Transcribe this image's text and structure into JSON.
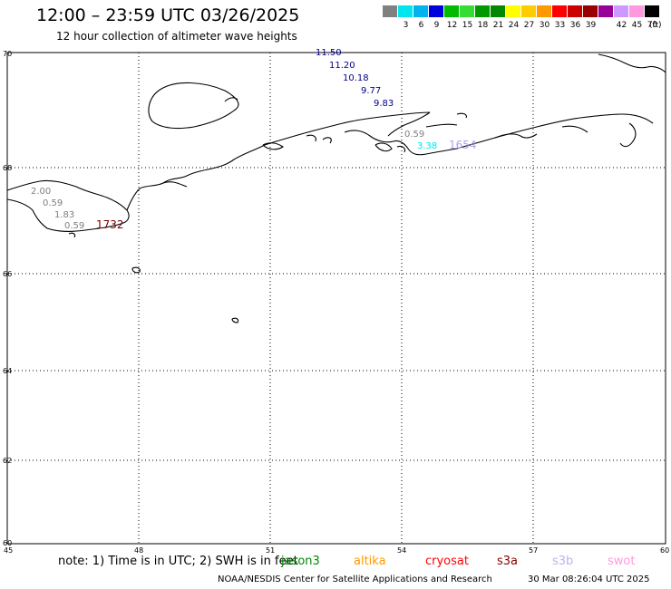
{
  "header": {
    "title": "12:00 – 23:59 UTC 03/26/2025",
    "subtitle": "12 hour collection of altimeter wave heights"
  },
  "scale": {
    "unit": "(ft)",
    "colors": [
      "#808080",
      "#00e5ee",
      "#00b2ee",
      "#0000dd",
      "#00bb00",
      "#33dd33",
      "#009900",
      "#008800",
      "#ffff00",
      "#ffcc00",
      "#ff9900",
      "#ff0000",
      "#cc0000",
      "#990000",
      "#990099",
      "#cc99ff",
      "#ff99dd",
      "#000000"
    ],
    "labels": [
      "3",
      "6",
      "9",
      "12",
      "15",
      "18",
      "21",
      "24",
      "27",
      "30",
      "33",
      "36",
      "39",
      "42",
      "45",
      "70"
    ]
  },
  "map": {
    "lat_labels": [
      "70",
      "68",
      "66",
      "64",
      "62",
      "60"
    ],
    "lon_labels": [
      "45",
      "48",
      "51",
      "54",
      "57",
      "60"
    ],
    "points": [
      {
        "value": "11.50",
        "color": "#00008b"
      },
      {
        "value": "11.20",
        "color": "#00008b"
      },
      {
        "value": "10.18",
        "color": "#00008b"
      },
      {
        "value": "9.77",
        "color": "#00008b"
      },
      {
        "value": "9.83",
        "color": "#00008b"
      },
      {
        "value": "0.59",
        "color": "#808080"
      },
      {
        "value": "3.38",
        "color": "#00e5ee"
      },
      {
        "value": "1654",
        "color": "#b0a0ee"
      },
      {
        "value": "2.00",
        "color": "#808080"
      },
      {
        "value": "0.59",
        "color": "#808080"
      },
      {
        "value": "1.83",
        "color": "#808080"
      },
      {
        "value": "0.59",
        "color": "#808080"
      },
      {
        "value": "1732",
        "color": "#7a0000"
      }
    ]
  },
  "note": "note: 1) Time is in UTC; 2) SWH is in feet",
  "satellites": [
    {
      "name": "jason3",
      "color": "#008800"
    },
    {
      "name": "altika",
      "color": "#ff9900"
    },
    {
      "name": "cryosat",
      "color": "#ff0000"
    },
    {
      "name": "s3a",
      "color": "#880000"
    },
    {
      "name": "s3b",
      "color": "#c0b0ee"
    },
    {
      "name": "swot",
      "color": "#ff99dd"
    }
  ],
  "footer": {
    "credit": "NOAA/NESDIS Center for Satellite Applications and Research",
    "generated": "30 Mar 08:26:04 UTC 2025"
  }
}
